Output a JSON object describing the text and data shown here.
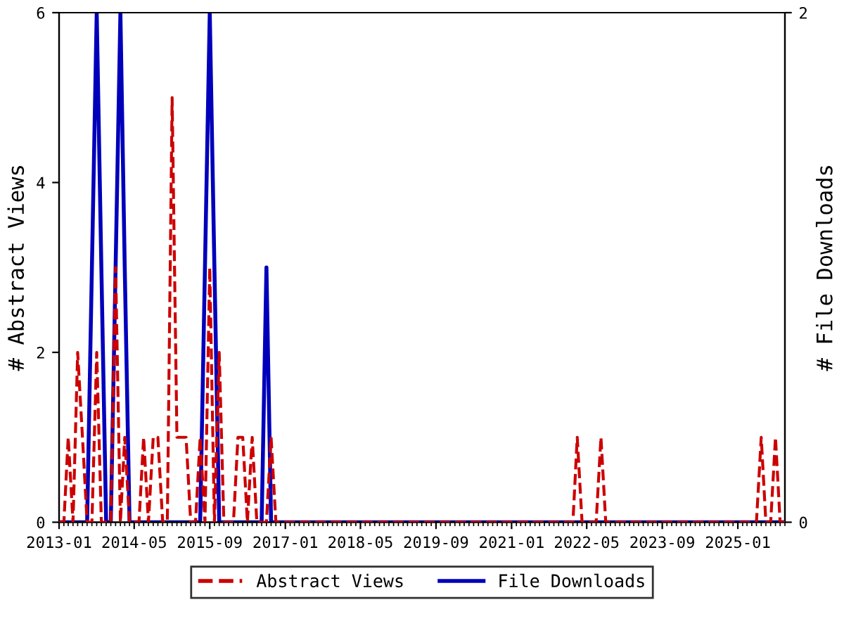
{
  "chart_data": {
    "type": "line",
    "x": [
      "2013-01",
      "2013-02",
      "2013-03",
      "2013-04",
      "2013-05",
      "2013-06",
      "2013-07",
      "2013-08",
      "2013-09",
      "2013-10",
      "2013-11",
      "2013-12",
      "2014-01",
      "2014-02",
      "2014-03",
      "2014-04",
      "2014-05",
      "2014-06",
      "2014-07",
      "2014-08",
      "2014-09",
      "2014-10",
      "2014-11",
      "2014-12",
      "2015-01",
      "2015-02",
      "2015-03",
      "2015-04",
      "2015-05",
      "2015-06",
      "2015-07",
      "2015-08",
      "2015-09",
      "2015-10",
      "2015-11",
      "2015-12",
      "2016-01",
      "2016-02",
      "2016-03",
      "2016-04",
      "2016-05",
      "2016-06",
      "2016-07",
      "2016-08",
      "2016-09",
      "2016-10",
      "2016-11",
      "2016-12",
      "2017-01",
      "2017-02",
      "2017-03",
      "2017-04",
      "2017-05",
      "2017-06",
      "2017-07",
      "2017-08",
      "2017-09",
      "2017-10",
      "2017-11",
      "2017-12",
      "2018-01",
      "2018-02",
      "2018-03",
      "2018-04",
      "2018-05",
      "2018-06",
      "2018-07",
      "2018-08",
      "2018-09",
      "2018-10",
      "2018-11",
      "2018-12",
      "2019-01",
      "2019-02",
      "2019-03",
      "2019-04",
      "2019-05",
      "2019-06",
      "2019-07",
      "2019-08",
      "2019-09",
      "2019-10",
      "2019-11",
      "2019-12",
      "2020-01",
      "2020-02",
      "2020-03",
      "2020-04",
      "2020-05",
      "2020-06",
      "2020-07",
      "2020-08",
      "2020-09",
      "2020-10",
      "2020-11",
      "2020-12",
      "2021-01",
      "2021-02",
      "2021-03",
      "2021-04",
      "2021-05",
      "2021-06",
      "2021-07",
      "2021-08",
      "2021-09",
      "2021-10",
      "2021-11",
      "2021-12",
      "2022-01",
      "2022-02",
      "2022-03",
      "2022-04",
      "2022-05",
      "2022-06",
      "2022-07",
      "2022-08",
      "2022-09",
      "2022-10",
      "2022-11",
      "2022-12",
      "2023-01",
      "2023-02",
      "2023-03",
      "2023-04",
      "2023-05",
      "2023-06",
      "2023-07",
      "2023-08",
      "2023-09",
      "2023-10",
      "2023-11",
      "2023-12",
      "2024-01",
      "2024-02",
      "2024-03",
      "2024-04",
      "2024-05",
      "2024-06",
      "2024-07",
      "2024-08",
      "2024-09",
      "2024-10",
      "2024-11",
      "2024-12",
      "2025-01",
      "2025-02",
      "2025-03",
      "2025-04",
      "2025-05",
      "2025-06",
      "2025-07",
      "2025-08",
      "2025-09",
      "2025-10",
      "2025-11"
    ],
    "series": [
      {
        "name": "Abstract Views",
        "color": "#cc0000",
        "line_style": "dashed",
        "values": [
          0,
          0,
          1,
          0,
          2,
          1,
          0,
          0,
          2,
          0,
          0,
          0,
          3,
          0,
          1,
          0,
          0,
          0,
          1,
          0,
          1,
          1,
          0,
          0,
          5,
          1,
          1,
          1,
          0,
          0,
          1,
          0,
          3,
          0,
          2,
          0,
          0,
          0,
          1,
          1,
          0,
          1,
          0,
          0,
          0,
          1,
          0,
          0,
          0,
          0,
          0,
          0,
          0,
          0,
          0,
          0,
          0,
          0,
          0,
          0,
          0,
          0,
          0,
          0,
          0,
          0,
          0,
          0,
          0,
          0,
          0,
          0,
          0,
          0,
          0,
          0,
          0,
          0,
          0,
          0,
          0,
          0,
          0,
          0,
          0,
          0,
          0,
          0,
          0,
          0,
          0,
          0,
          0,
          0,
          0,
          0,
          0,
          0,
          0,
          0,
          0,
          0,
          0,
          0,
          0,
          0,
          0,
          0,
          0,
          0,
          1,
          0,
          0,
          0,
          0,
          1,
          0,
          0,
          0,
          0,
          0,
          0,
          0,
          0,
          0,
          0,
          0,
          0,
          0,
          0,
          0,
          0,
          0,
          0,
          0,
          0,
          0,
          0,
          0,
          0,
          0,
          0,
          0,
          0,
          0,
          0,
          0,
          0,
          0,
          1,
          0,
          0,
          1,
          0,
          0
        ]
      },
      {
        "name": "File Downloads",
        "color": "#0000bb",
        "line_style": "solid",
        "axis": "y2",
        "values": [
          0,
          0,
          0,
          0,
          0,
          0,
          0,
          1,
          2,
          1,
          0,
          0,
          1,
          2,
          1,
          0,
          0,
          0,
          0,
          0,
          0,
          0,
          0,
          0,
          0,
          0,
          0,
          0,
          0,
          0,
          0,
          1,
          2,
          1,
          0,
          0,
          0,
          0,
          0,
          0,
          0,
          0,
          0,
          0,
          1,
          0,
          0,
          0,
          0,
          0,
          0,
          0,
          0,
          0,
          0,
          0,
          0,
          0,
          0,
          0,
          0,
          0,
          0,
          0,
          0,
          0,
          0,
          0,
          0,
          0,
          0,
          0,
          0,
          0,
          0,
          0,
          0,
          0,
          0,
          0,
          0,
          0,
          0,
          0,
          0,
          0,
          0,
          0,
          0,
          0,
          0,
          0,
          0,
          0,
          0,
          0,
          0,
          0,
          0,
          0,
          0,
          0,
          0,
          0,
          0,
          0,
          0,
          0,
          0,
          0,
          0,
          0,
          0,
          0,
          0,
          0,
          0,
          0,
          0,
          0,
          0,
          0,
          0,
          0,
          0,
          0,
          0,
          0,
          0,
          0,
          0,
          0,
          0,
          0,
          0,
          0,
          0,
          0,
          0,
          0,
          0,
          0,
          0,
          0,
          0,
          0,
          0,
          0,
          0,
          0,
          0,
          0,
          0,
          0,
          0
        ]
      }
    ],
    "xlim": [
      "2013-01",
      "2025-11"
    ],
    "xticks": [
      "2013-01",
      "2014-05",
      "2015-09",
      "2017-01",
      "2018-05",
      "2019-09",
      "2021-01",
      "2022-05",
      "2023-09",
      "2025-01"
    ],
    "ylim": [
      0,
      6
    ],
    "yticks": [
      0,
      2,
      4,
      6
    ],
    "y2lim": [
      0,
      2
    ],
    "y2ticks": [
      0,
      2
    ],
    "ylabel": "# Abstract Views",
    "y2label": "# File Downloads",
    "grid": false,
    "legend": "bottom",
    "marker": "none"
  }
}
